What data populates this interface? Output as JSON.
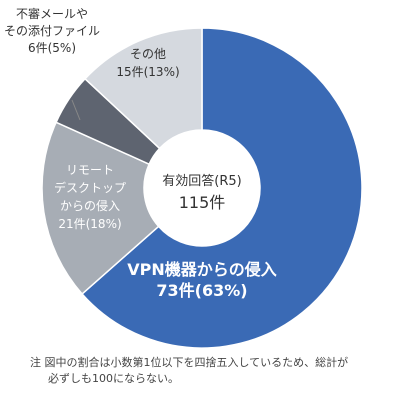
{
  "chart_data": {
    "type": "pie",
    "style": "donut",
    "center_label": {
      "title": "有効回答(R5)",
      "total": "115件"
    },
    "slices": [
      {
        "name": "VPN機器からの侵入",
        "count": 73,
        "percent": 63,
        "value_label": "73件(63%)",
        "color": "#3a6ab5",
        "label_color": "#ffffff",
        "label_lines": [
          "VPN機器からの侵入",
          "73件(63%)"
        ]
      },
      {
        "name": "リモートデスクトップからの侵入",
        "count": 21,
        "percent": 18,
        "value_label": "21件(18%)",
        "color": "#a7adb5",
        "label_color": "#ffffff",
        "label_lines": [
          "リモート",
          "デスクトップ",
          "からの侵入",
          "21件(18%)"
        ]
      },
      {
        "name": "不審メールやその添付ファイル",
        "count": 6,
        "percent": 5,
        "value_label": "6件(5%)",
        "color": "#5e6470",
        "label_color": "#333333",
        "label_lines": [
          "不審メールや",
          "その添付ファイル",
          "6件(5%)"
        ]
      },
      {
        "name": "その他",
        "count": 15,
        "percent": 13,
        "value_label": "15件(13%)",
        "color": "#d5d9df",
        "label_color": "#333333",
        "label_lines": [
          "その他",
          "15件(13%)"
        ]
      }
    ]
  },
  "note": {
    "line1": "注 図中の割合は小数第1位以下を四捨五入しているため、総計が",
    "line2": "必ずしも100にならない。"
  }
}
